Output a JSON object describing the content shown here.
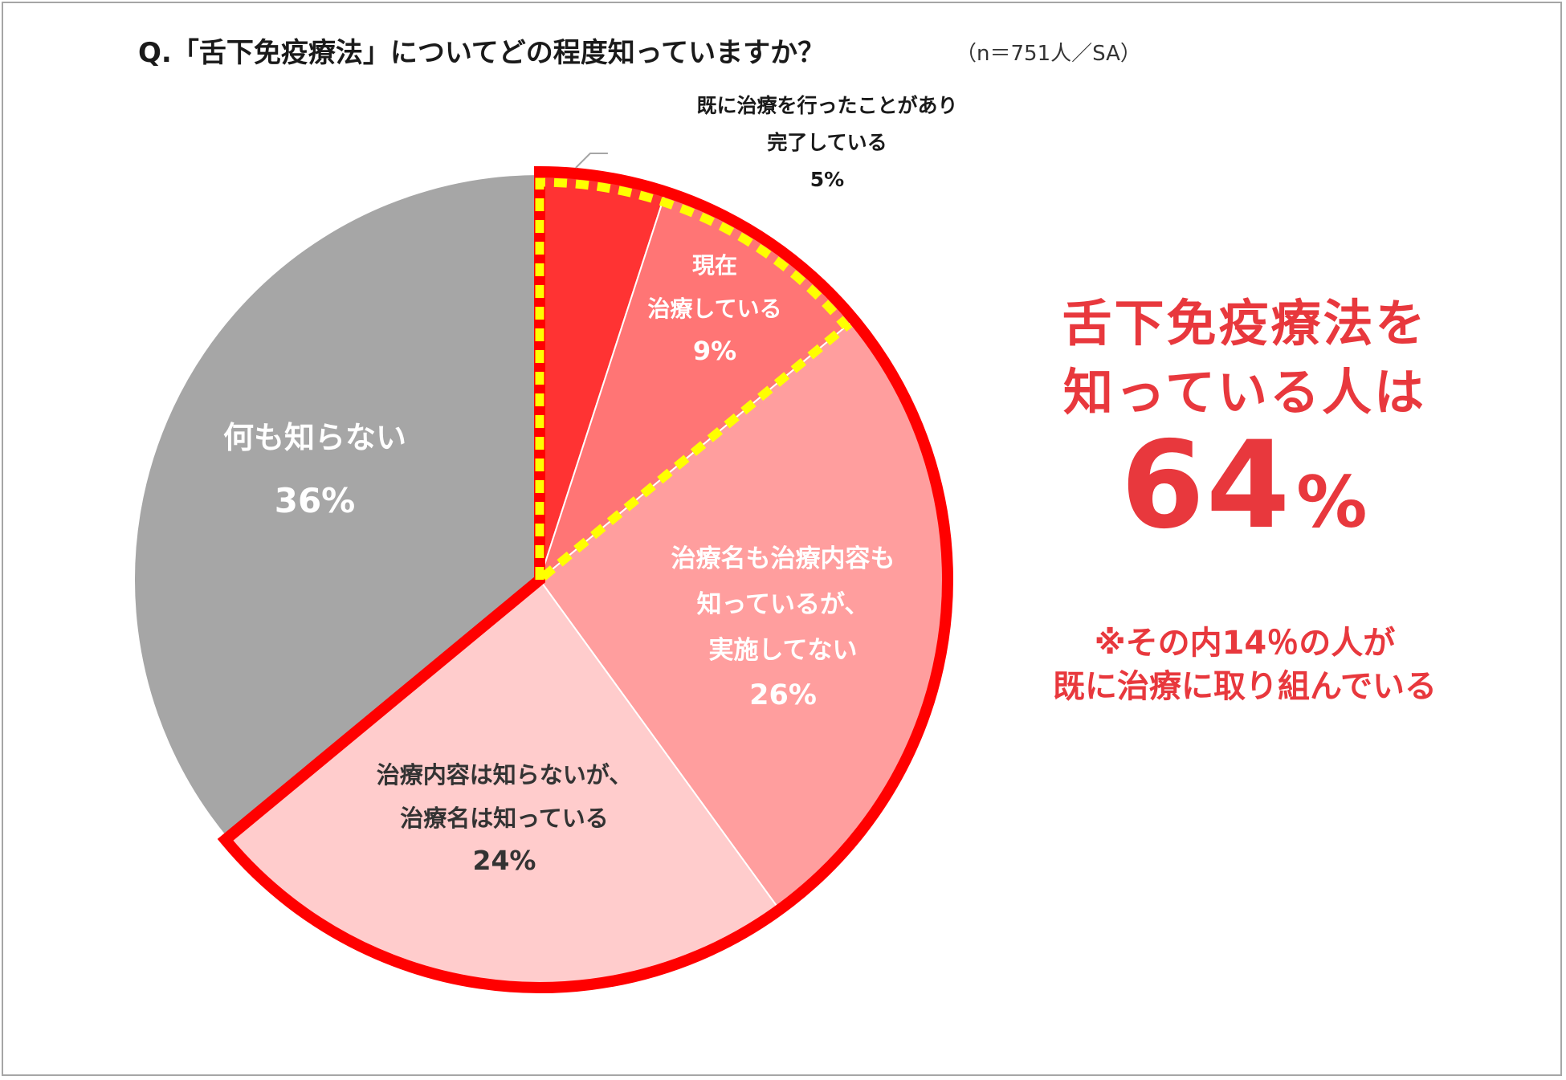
{
  "title": "Q.「舌下免疫療法」についてどの程度知っていますか？",
  "sample_note": "（n＝751人／SA）",
  "callout": {
    "line1": "舌下免疫療法を",
    "line2": "知っている人は",
    "percent_value": "64",
    "percent_sign": "%",
    "note1": "※その内14％の人が",
    "note2": "既に治療に取り組んでいる",
    "color": "#e8383d"
  },
  "chart_data": {
    "type": "pie",
    "title": "Q.「舌下免疫療法」についてどの程度知っていますか？",
    "n": 751,
    "start_angle_deg": 0,
    "direction": "clockwise",
    "slices": [
      {
        "name": "slice-completed",
        "label": "既に治療を行ったことがあり完了している",
        "label_lines": [
          "既に治療を行ったことがあり",
          "完了している"
        ],
        "value": 5,
        "value_label": "5%",
        "color": "#ff3333",
        "label_color": "#1a1a1a",
        "label_position": "outside"
      },
      {
        "name": "slice-current",
        "label": "現在治療している",
        "label_lines": [
          "現在",
          "治療している"
        ],
        "value": 9,
        "value_label": "9%",
        "color": "#ff7575",
        "label_color": "#ffffff",
        "label_position": "inside"
      },
      {
        "name": "slice-knows-both",
        "label": "治療名も治療内容も知っているが、実施してない",
        "label_lines": [
          "治療名も治療内容も",
          "知っているが、",
          "実施してない"
        ],
        "value": 26,
        "value_label": "26%",
        "color": "#ff9e9e",
        "label_color": "#ffffff",
        "label_position": "inside"
      },
      {
        "name": "slice-knows-name",
        "label": "治療内容は知らないが、治療名は知っている",
        "label_lines": [
          "治療内容は知らないが、",
          "治療名は知っている"
        ],
        "value": 24,
        "value_label": "24%",
        "color": "#ffcccc",
        "label_color": "#333333",
        "label_position": "inside"
      },
      {
        "name": "slice-knows-nothing",
        "label": "何も知らない",
        "label_lines": [
          "何も知らない"
        ],
        "value": 36,
        "value_label": "36%",
        "color": "#a6a6a6",
        "label_color": "#ffffff",
        "label_position": "inside"
      }
    ],
    "highlight_outline": {
      "color": "#ff0000",
      "slices": [
        "slice-completed",
        "slice-current",
        "slice-knows-both",
        "slice-knows-name"
      ],
      "total_label": "64%"
    },
    "dashed_outline": {
      "color": "#ffff00",
      "slices": [
        "slice-completed",
        "slice-current"
      ],
      "total_label": "14%"
    }
  }
}
